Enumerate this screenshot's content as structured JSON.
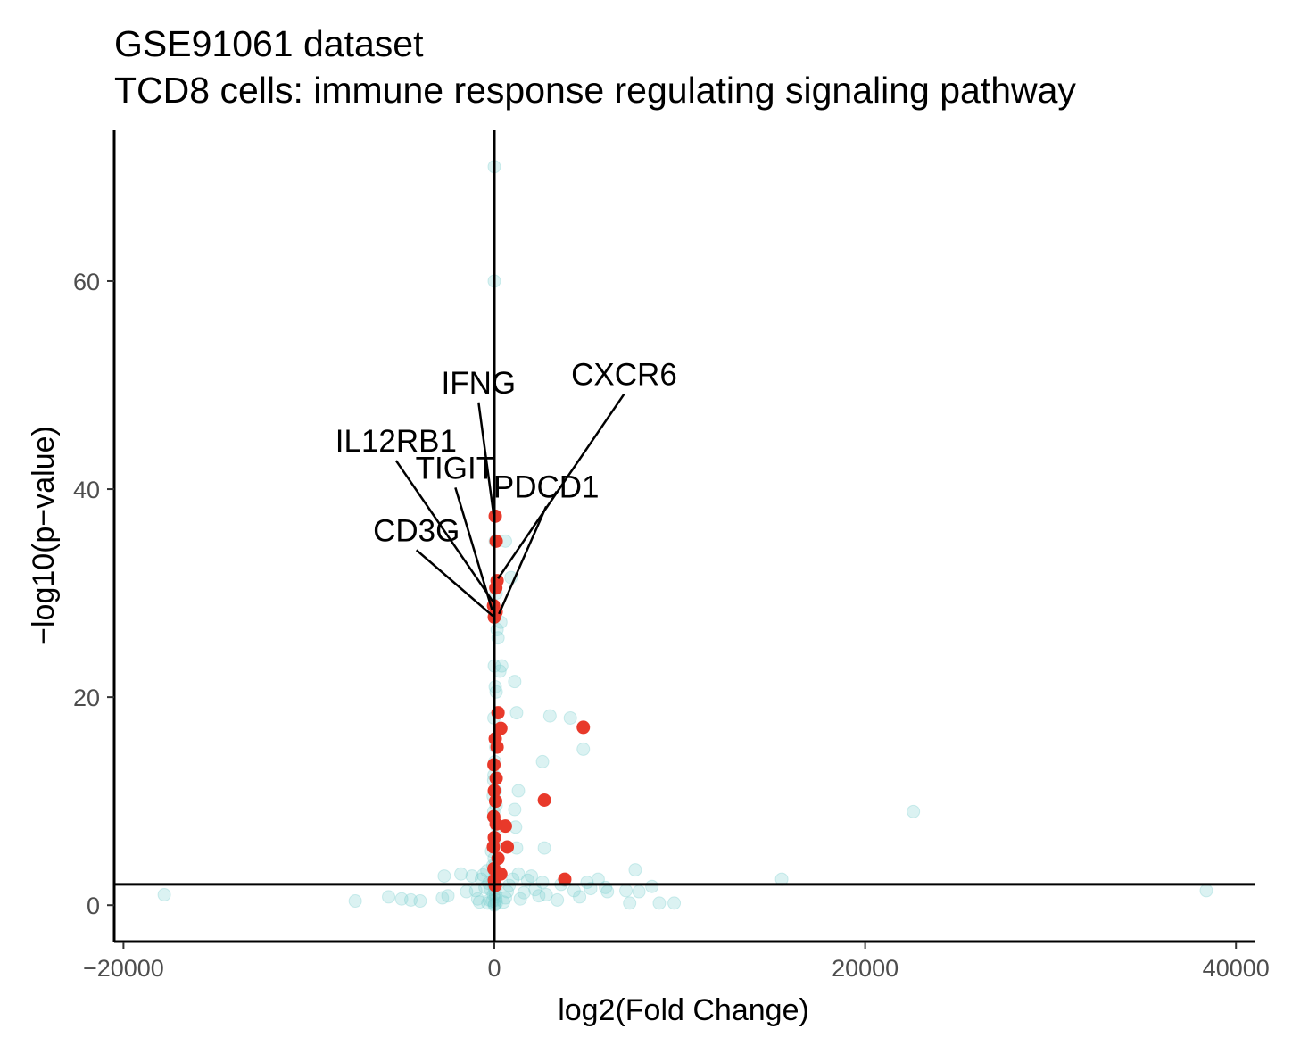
{
  "chart_data": {
    "type": "scatter",
    "title": "GSE91061 dataset",
    "subtitle": "TCD8 cells: immune response regulating signaling pathway",
    "xlabel": "log2(Fold Change)",
    "ylabel": "−log10(p−value)",
    "xlim": [
      -20500,
      41000
    ],
    "ylim": [
      -3.5,
      74.5
    ],
    "x_ticks": [
      -20000,
      0,
      20000,
      40000
    ],
    "x_tick_labels": [
      "−20000",
      "0",
      "20000",
      "40000"
    ],
    "y_ticks": [
      0,
      20,
      40,
      60
    ],
    "y_tick_labels": [
      "0",
      "20",
      "40",
      "60"
    ],
    "reference_lines": {
      "vertical_x": 0,
      "horizontal_y": 2
    },
    "grid": false,
    "colors": {
      "background_genes": "#7ccfcf",
      "pathway_genes": "#e8392a",
      "lines": "#000000"
    },
    "series": [
      {
        "role": "background",
        "points": [
          [
            -17800,
            1.0
          ],
          [
            -7500,
            0.4
          ],
          [
            -5700,
            0.8
          ],
          [
            -5000,
            0.6
          ],
          [
            -4500,
            0.5
          ],
          [
            -4000,
            0.4
          ],
          [
            -2800,
            0.7
          ],
          [
            -2700,
            2.8
          ],
          [
            -2500,
            0.9
          ],
          [
            -1800,
            3.0
          ],
          [
            -1500,
            1.3
          ],
          [
            -1200,
            2.8
          ],
          [
            -1000,
            1.4
          ],
          [
            -900,
            0.6
          ],
          [
            -800,
            0.3
          ],
          [
            -700,
            2.5
          ],
          [
            -600,
            2.9
          ],
          [
            -500,
            1.7
          ],
          [
            -400,
            3.3
          ],
          [
            -350,
            0.2
          ],
          [
            -300,
            2.1
          ],
          [
            -250,
            0.5
          ],
          [
            -200,
            1.5
          ],
          [
            -150,
            5.2
          ],
          [
            -100,
            0.4
          ],
          [
            -80,
            3.8
          ],
          [
            -50,
            1.0
          ],
          [
            -30,
            9.0
          ],
          [
            -20,
            12.5
          ],
          [
            0,
            71.0
          ],
          [
            0,
            60.0
          ],
          [
            50,
            35.0
          ],
          [
            100,
            30.0
          ],
          [
            150,
            26.5
          ],
          [
            200,
            25.7
          ],
          [
            0,
            23.0
          ],
          [
            50,
            21.0
          ],
          [
            100,
            20.5
          ],
          [
            -20,
            18.0
          ],
          [
            80,
            15.2
          ],
          [
            30,
            13.8
          ],
          [
            -30,
            12.0
          ],
          [
            60,
            11.0
          ],
          [
            -60,
            10.5
          ],
          [
            100,
            9.6
          ],
          [
            -40,
            8.5
          ],
          [
            150,
            7.5
          ],
          [
            10,
            6.5
          ],
          [
            0,
            5.8
          ],
          [
            -10,
            4.5
          ],
          [
            20,
            3.8
          ],
          [
            40,
            3.2
          ],
          [
            60,
            2.8
          ],
          [
            0,
            2.3
          ],
          [
            -20,
            1.9
          ],
          [
            30,
            1.5
          ],
          [
            50,
            1.1
          ],
          [
            70,
            0.8
          ],
          [
            90,
            0.5
          ],
          [
            110,
            0.2
          ],
          [
            20,
            0.1
          ],
          [
            0,
            0.0
          ],
          [
            300,
            22.5
          ],
          [
            350,
            27.2
          ],
          [
            400,
            23.0
          ],
          [
            600,
            35.0
          ],
          [
            900,
            31.5
          ],
          [
            1100,
            21.5
          ],
          [
            1200,
            18.5
          ],
          [
            1300,
            11.0
          ],
          [
            1100,
            9.2
          ],
          [
            1150,
            7.5
          ],
          [
            1200,
            5.5
          ],
          [
            1300,
            3.0
          ],
          [
            1000,
            2.5
          ],
          [
            800,
            1.9
          ],
          [
            700,
            1.3
          ],
          [
            600,
            0.7
          ],
          [
            500,
            0.3
          ],
          [
            1400,
            0.6
          ],
          [
            1600,
            1.2
          ],
          [
            1800,
            2.4
          ],
          [
            2000,
            2.8
          ],
          [
            2200,
            1.5
          ],
          [
            2400,
            0.9
          ],
          [
            2600,
            2.2
          ],
          [
            2700,
            5.5
          ],
          [
            2800,
            1.0
          ],
          [
            2600,
            13.8
          ],
          [
            3000,
            18.2
          ],
          [
            3400,
            0.5
          ],
          [
            3600,
            2.0
          ],
          [
            3800,
            2.4
          ],
          [
            4100,
            18.0
          ],
          [
            4300,
            1.4
          ],
          [
            4600,
            0.8
          ],
          [
            4800,
            15.0
          ],
          [
            5000,
            2.2
          ],
          [
            5200,
            1.6
          ],
          [
            5600,
            2.5
          ],
          [
            6000,
            1.7
          ],
          [
            6100,
            1.3
          ],
          [
            7100,
            1.4
          ],
          [
            7600,
            3.4
          ],
          [
            7800,
            1.3
          ],
          [
            8500,
            1.8
          ],
          [
            7300,
            0.2
          ],
          [
            8900,
            0.2
          ],
          [
            9700,
            0.2
          ],
          [
            15500,
            2.5
          ],
          [
            22600,
            9.0
          ],
          [
            38400,
            1.4
          ]
        ]
      },
      {
        "role": "highlighted",
        "points": [
          [
            50,
            37.4
          ],
          [
            100,
            35.0
          ],
          [
            150,
            31.2
          ],
          [
            80,
            30.5
          ],
          [
            -40,
            28.8
          ],
          [
            100,
            28.2
          ],
          [
            0,
            27.7
          ],
          [
            200,
            18.5
          ],
          [
            350,
            17.0
          ],
          [
            50,
            16.0
          ],
          [
            150,
            15.2
          ],
          [
            -20,
            13.5
          ],
          [
            100,
            12.2
          ],
          [
            0,
            11.0
          ],
          [
            70,
            10.0
          ],
          [
            -30,
            8.5
          ],
          [
            100,
            7.8
          ],
          [
            600,
            7.6
          ],
          [
            0,
            6.5
          ],
          [
            -50,
            5.6
          ],
          [
            700,
            5.6
          ],
          [
            200,
            4.5
          ],
          [
            -20,
            3.5
          ],
          [
            350,
            3.0
          ],
          [
            0,
            2.4
          ],
          [
            50,
            1.9
          ],
          [
            4800,
            17.1
          ],
          [
            2700,
            10.1
          ],
          [
            3800,
            2.5
          ]
        ]
      }
    ],
    "annotations": [
      {
        "text": "IFNG",
        "point": [
          -40,
          37.6
        ],
        "label_at": [
          -850,
          49.2
        ]
      },
      {
        "text": "CXCR6",
        "point": [
          200,
          31.4
        ],
        "label_at": [
          7000,
          50.0
        ]
      },
      {
        "text": "IL12RB1",
        "point": [
          -80,
          29.2
        ],
        "label_at": [
          -5300,
          43.6
        ]
      },
      {
        "text": "TIGIT",
        "point": [
          -120,
          28.4
        ],
        "label_at": [
          -2100,
          41.0
        ]
      },
      {
        "text": "PDCD1",
        "point": [
          250,
          28.0
        ],
        "label_at": [
          2800,
          39.2
        ]
      },
      {
        "text": "CD3G",
        "point": [
          -80,
          27.8
        ],
        "label_at": [
          -4200,
          35.0
        ]
      }
    ]
  }
}
